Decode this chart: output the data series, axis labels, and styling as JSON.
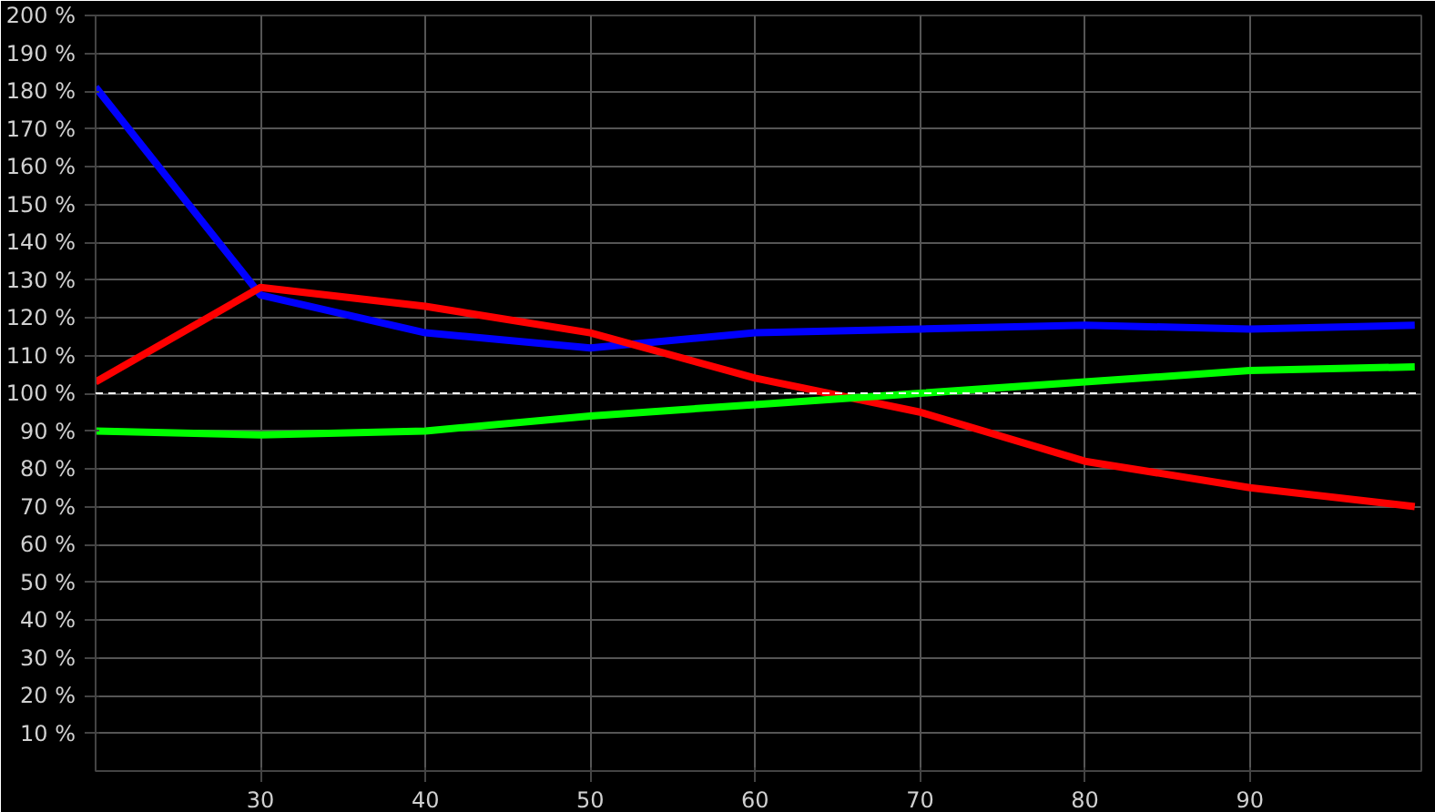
{
  "chart_data": {
    "type": "line",
    "x": [
      20,
      30,
      40,
      50,
      60,
      70,
      80,
      90,
      100
    ],
    "xlim": [
      20,
      100.4
    ],
    "ylim": [
      0,
      200
    ],
    "xticks": [
      30,
      40,
      50,
      60,
      70,
      80,
      90
    ],
    "yticks": [
      {
        "value": 10,
        "label": "10 %"
      },
      {
        "value": 20,
        "label": "20 %"
      },
      {
        "value": 30,
        "label": "30 %"
      },
      {
        "value": 40,
        "label": "40 %"
      },
      {
        "value": 50,
        "label": "50 %"
      },
      {
        "value": 60,
        "label": "60 %"
      },
      {
        "value": 70,
        "label": "70 %"
      },
      {
        "value": 80,
        "label": "80 %"
      },
      {
        "value": 90,
        "label": "90 %"
      },
      {
        "value": 100,
        "label": "100 %"
      },
      {
        "value": 110,
        "label": "110 %"
      },
      {
        "value": 120,
        "label": "120 %"
      },
      {
        "value": 130,
        "label": "130 %"
      },
      {
        "value": 140,
        "label": "140 %"
      },
      {
        "value": 150,
        "label": "150 %"
      },
      {
        "value": 160,
        "label": "160 %"
      },
      {
        "value": 170,
        "label": "170 %"
      },
      {
        "value": 180,
        "label": "180 %"
      },
      {
        "value": 190,
        "label": "190 %"
      },
      {
        "value": 200,
        "label": "200 %"
      }
    ],
    "series": [
      {
        "color": "#0000ff",
        "values": [
          181,
          126,
          116,
          112,
          116,
          117,
          118,
          117,
          118
        ]
      },
      {
        "color": "#ff0000",
        "values": [
          103,
          128,
          123,
          116,
          104,
          95,
          82,
          75,
          70
        ]
      },
      {
        "color": "#00ff00",
        "values": [
          90,
          89,
          90,
          94,
          97,
          100,
          103,
          106,
          107
        ]
      }
    ],
    "ref_lines": [
      {
        "axis": "y",
        "value": 100,
        "color": "#ffffff",
        "line_style": "dashed"
      }
    ],
    "grid": true
  }
}
